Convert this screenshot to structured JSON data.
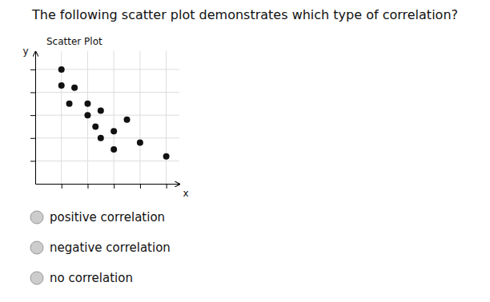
{
  "chart_data": {
    "type": "scatter",
    "title": "The following scatter plot demonstrates which type of correlation?",
    "subtitle": "Scatter Plot",
    "xlabel": "x",
    "ylabel": "y",
    "x": [
      1,
      1,
      1.3,
      1.5,
      2,
      2,
      2.3,
      2.5,
      2.5,
      3,
      3,
      3.5,
      4,
      5
    ],
    "values": [
      5,
      4.3,
      3.5,
      4.2,
      3.5,
      3.0,
      2.5,
      3.2,
      2.0,
      2.3,
      1.5,
      2.8,
      1.8,
      1.2
    ],
    "color": "#111111",
    "xlim": [
      0,
      5.5
    ],
    "ylim": [
      0,
      5.8
    ],
    "xticks": [
      1,
      2,
      3,
      4,
      5
    ],
    "yticks": [
      1,
      2,
      3,
      4,
      5
    ],
    "grid": true,
    "tick_labels": false,
    "annotations": [
      "positive correlation",
      "negative correlation",
      "no correlation"
    ]
  }
}
